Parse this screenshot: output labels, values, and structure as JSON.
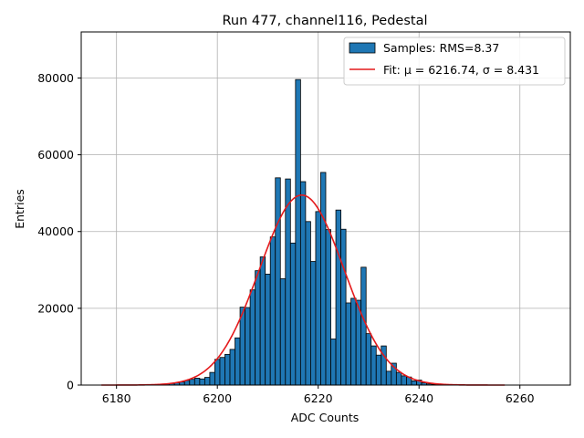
{
  "chart_data": {
    "type": "bar",
    "title": "Run 477, channel116, Pedestal",
    "xlabel": "ADC Counts",
    "ylabel": "Entries",
    "xlim": [
      6173,
      6270
    ],
    "ylim": [
      0,
      92000
    ],
    "xticks": [
      6180,
      6200,
      6220,
      6240,
      6260
    ],
    "yticks": [
      0,
      20000,
      40000,
      60000,
      80000
    ],
    "grid": true,
    "legend_position": "top-right",
    "histogram": {
      "name": "Samples: RMS=8.37",
      "color": "#1f77b4",
      "bin_width": 1,
      "bins": [
        [
          6189,
          200
        ],
        [
          6190,
          300
        ],
        [
          6191,
          400
        ],
        [
          6192,
          600
        ],
        [
          6193,
          800
        ],
        [
          6194,
          1200
        ],
        [
          6195,
          1500
        ],
        [
          6196,
          1800
        ],
        [
          6197,
          1600
        ],
        [
          6198,
          2000
        ],
        [
          6199,
          3300
        ],
        [
          6200,
          6700
        ],
        [
          6201,
          7200
        ],
        [
          6202,
          8000
        ],
        [
          6203,
          9300
        ],
        [
          6204,
          12300
        ],
        [
          6205,
          20300
        ],
        [
          6206,
          20200
        ],
        [
          6207,
          24800
        ],
        [
          6208,
          29800
        ],
        [
          6209,
          33400
        ],
        [
          6210,
          28900
        ],
        [
          6211,
          38600
        ],
        [
          6212,
          54000
        ],
        [
          6213,
          27700
        ],
        [
          6214,
          53700
        ],
        [
          6215,
          37000
        ],
        [
          6216,
          79600
        ],
        [
          6217,
          53000
        ],
        [
          6218,
          42600
        ],
        [
          6219,
          32200
        ],
        [
          6220,
          45200
        ],
        [
          6221,
          55400
        ],
        [
          6222,
          40500
        ],
        [
          6223,
          12000
        ],
        [
          6224,
          45600
        ],
        [
          6225,
          40600
        ],
        [
          6226,
          21400
        ],
        [
          6227,
          22600
        ],
        [
          6228,
          22100
        ],
        [
          6229,
          30700
        ],
        [
          6230,
          13400
        ],
        [
          6231,
          10200
        ],
        [
          6232,
          7800
        ],
        [
          6233,
          10200
        ],
        [
          6234,
          3600
        ],
        [
          6235,
          5700
        ],
        [
          6236,
          3300
        ],
        [
          6237,
          2400
        ],
        [
          6238,
          2100
        ],
        [
          6239,
          1100
        ],
        [
          6240,
          1300
        ],
        [
          6241,
          600
        ],
        [
          6242,
          300
        ],
        [
          6243,
          200
        ]
      ]
    },
    "fit": {
      "name": "Fit: μ = 6216.74, σ = 8.431",
      "color": "#e41a1c",
      "mu": 6216.74,
      "sigma": 8.431,
      "amplitude": 49500,
      "x_range": [
        6177,
        6257
      ]
    }
  }
}
